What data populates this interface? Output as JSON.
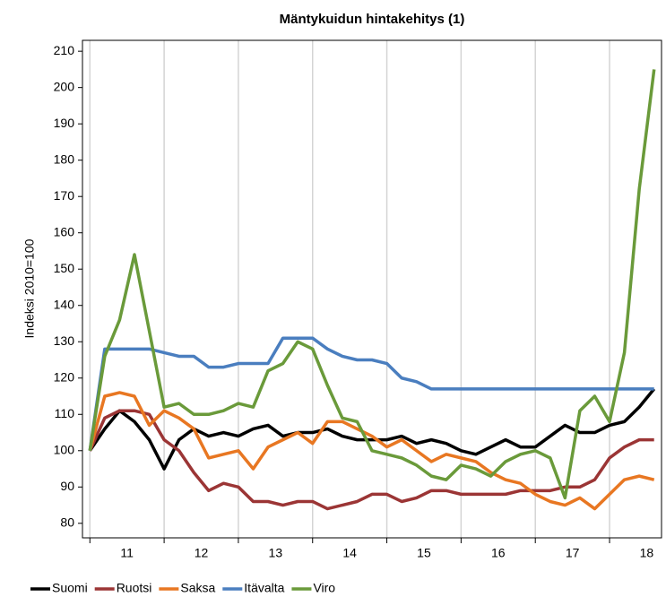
{
  "chart_data": {
    "type": "line",
    "title": "Mäntykuidun hintakehitys (1)",
    "ylabel": "Indeksi 2010=100",
    "x": [
      11.0,
      11.2,
      11.4,
      11.6,
      11.8,
      12.0,
      12.2,
      12.4,
      12.6,
      12.8,
      13.0,
      13.2,
      13.4,
      13.6,
      13.8,
      14.0,
      14.2,
      14.4,
      14.6,
      14.8,
      15.0,
      15.2,
      15.4,
      15.6,
      15.8,
      16.0,
      16.2,
      16.4,
      16.6,
      16.8,
      17.0,
      17.2,
      17.4,
      17.6,
      17.8,
      18.0,
      18.2,
      18.4,
      18.6
    ],
    "series": [
      {
        "name": "Suomi",
        "color": "#000000",
        "values": [
          100,
          106,
          111,
          108,
          103,
          95,
          103,
          106,
          104,
          105,
          104,
          106,
          107,
          104,
          105,
          105,
          106,
          104,
          103,
          103,
          103,
          104,
          102,
          103,
          102,
          100,
          99,
          101,
          103,
          101,
          101,
          104,
          107,
          105,
          105,
          107,
          108,
          112,
          117
        ]
      },
      {
        "name": "Ruotsi",
        "color": "#9b3535",
        "values": [
          100,
          109,
          111,
          111,
          110,
          103,
          100,
          94,
          89,
          91,
          90,
          86,
          86,
          85,
          86,
          86,
          84,
          85,
          86,
          88,
          88,
          86,
          87,
          89,
          89,
          88,
          88,
          88,
          88,
          89,
          89,
          89,
          90,
          90,
          92,
          98,
          101,
          103,
          103
        ]
      },
      {
        "name": "Saksa",
        "color": "#e87722",
        "values": [
          100,
          115,
          116,
          115,
          107,
          111,
          109,
          106,
          98,
          99,
          100,
          95,
          101,
          103,
          105,
          102,
          108,
          108,
          106,
          104,
          101,
          103,
          100,
          97,
          99,
          98,
          97,
          94,
          92,
          91,
          88,
          86,
          85,
          87,
          84,
          88,
          92,
          93,
          92
        ]
      },
      {
        "name": "Itävalta",
        "color": "#4a7ebf",
        "values": [
          100,
          128,
          128,
          128,
          128,
          127,
          126,
          126,
          123,
          123,
          124,
          124,
          124,
          131,
          131,
          131,
          128,
          126,
          125,
          125,
          124,
          120,
          119,
          117,
          117,
          117,
          117,
          117,
          117,
          117,
          117,
          117,
          117,
          117,
          117,
          117,
          117,
          117,
          117
        ]
      },
      {
        "name": "Viro",
        "color": "#6a9a3a",
        "values": [
          100,
          126,
          136,
          154,
          133,
          112,
          113,
          110,
          110,
          111,
          113,
          112,
          122,
          124,
          130,
          128,
          118,
          109,
          108,
          100,
          99,
          98,
          96,
          93,
          92,
          96,
          95,
          93,
          97,
          99,
          100,
          98,
          87,
          111,
          115,
          108,
          127,
          172,
          205
        ]
      }
    ],
    "xlim": [
      10.9,
      18.7
    ],
    "xticks": [
      {
        "value": 11.5,
        "label": "11"
      },
      {
        "value": 12.5,
        "label": "12"
      },
      {
        "value": 13.5,
        "label": "13"
      },
      {
        "value": 14.5,
        "label": "14"
      },
      {
        "value": 15.5,
        "label": "15"
      },
      {
        "value": 16.5,
        "label": "16"
      },
      {
        "value": 17.5,
        "label": "17"
      },
      {
        "value": 18.5,
        "label": "18"
      }
    ],
    "xgrid": [
      11,
      12,
      13,
      14,
      15,
      16,
      17,
      18
    ],
    "ylim": [
      76,
      213
    ],
    "yticks": [
      80,
      90,
      100,
      110,
      120,
      130,
      140,
      150,
      160,
      170,
      180,
      190,
      200,
      210
    ],
    "legend": "bottom"
  }
}
